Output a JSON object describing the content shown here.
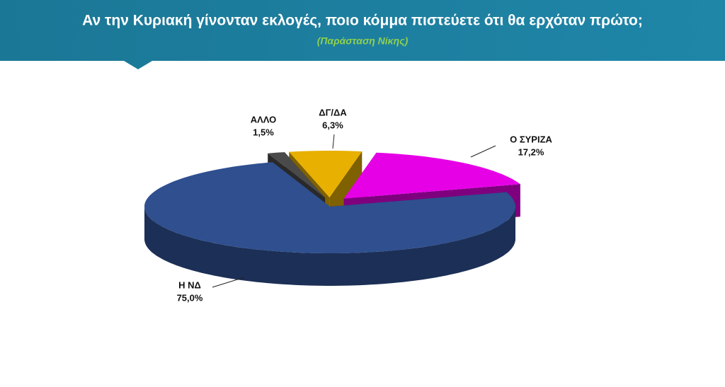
{
  "chart_data": {
    "type": "pie3d",
    "title": "Αν την Κυριακή γίνονταν εκλογές, ποιο κόμμα πιστεύετε ότι θα ερχόταν πρώτο;",
    "subtitle": "(Παράσταση Νίκης)",
    "categories": [
      "Η ΝΔ",
      "ΑΛΛΟ",
      "ΔΓ/ΔΑ",
      "Ο ΣΥΡΙΖΑ"
    ],
    "values": [
      75.0,
      1.5,
      6.3,
      17.2
    ],
    "value_labels": [
      "75,0%",
      "1,5%",
      "6,3%",
      "17,2%"
    ],
    "colors": [
      "#2f4f8f",
      "#4a4a4a",
      "#e8b000",
      "#e600e6"
    ]
  }
}
